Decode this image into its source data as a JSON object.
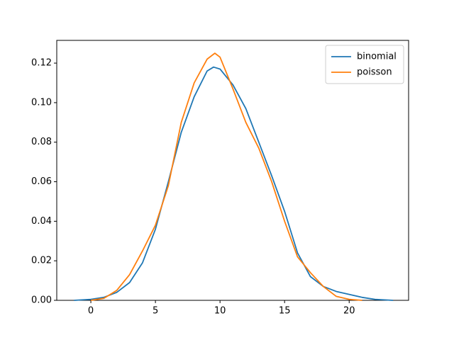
{
  "chart_data": {
    "type": "line",
    "series": [
      {
        "name": "binomial",
        "color": "#1f77b4",
        "x": [
          -1.3,
          0,
          1,
          2,
          3,
          4,
          5,
          6,
          7,
          8,
          9,
          9.5,
          10,
          11,
          12,
          13,
          14,
          15,
          16,
          17,
          18,
          19,
          20,
          21,
          22,
          23.4
        ],
        "values": [
          0,
          0.0005,
          0.0015,
          0.004,
          0.009,
          0.019,
          0.036,
          0.06,
          0.085,
          0.103,
          0.116,
          0.118,
          0.117,
          0.109,
          0.097,
          0.08,
          0.063,
          0.045,
          0.024,
          0.012,
          0.007,
          0.0045,
          0.003,
          0.0015,
          0.0005,
          0
        ]
      },
      {
        "name": "poisson",
        "color": "#ff7f0e",
        "x": [
          0,
          1,
          2,
          3,
          4,
          5,
          6,
          7,
          8,
          9,
          9.6,
          10,
          11,
          12,
          13,
          14,
          15,
          16,
          17,
          18,
          19,
          20,
          21
        ],
        "values": [
          0,
          0.001,
          0.005,
          0.013,
          0.025,
          0.038,
          0.058,
          0.09,
          0.11,
          0.122,
          0.125,
          0.123,
          0.107,
          0.09,
          0.077,
          0.06,
          0.04,
          0.022,
          0.014,
          0.007,
          0.002,
          0.0005,
          0
        ]
      }
    ],
    "xlim": [
      -2.64,
      24.6
    ],
    "ylim": [
      0,
      0.1315
    ],
    "xticks": [
      0,
      5,
      10,
      15,
      20
    ],
    "yticks": [
      {
        "value": 0,
        "label": "0.00"
      },
      {
        "value": 0.02,
        "label": "0.02"
      },
      {
        "value": 0.04,
        "label": "0.04"
      },
      {
        "value": 0.06,
        "label": "0.06"
      },
      {
        "value": 0.08,
        "label": "0.08"
      },
      {
        "value": 0.1,
        "label": "0.10"
      },
      {
        "value": 0.12,
        "label": "0.12"
      }
    ],
    "legend": "upper right"
  }
}
